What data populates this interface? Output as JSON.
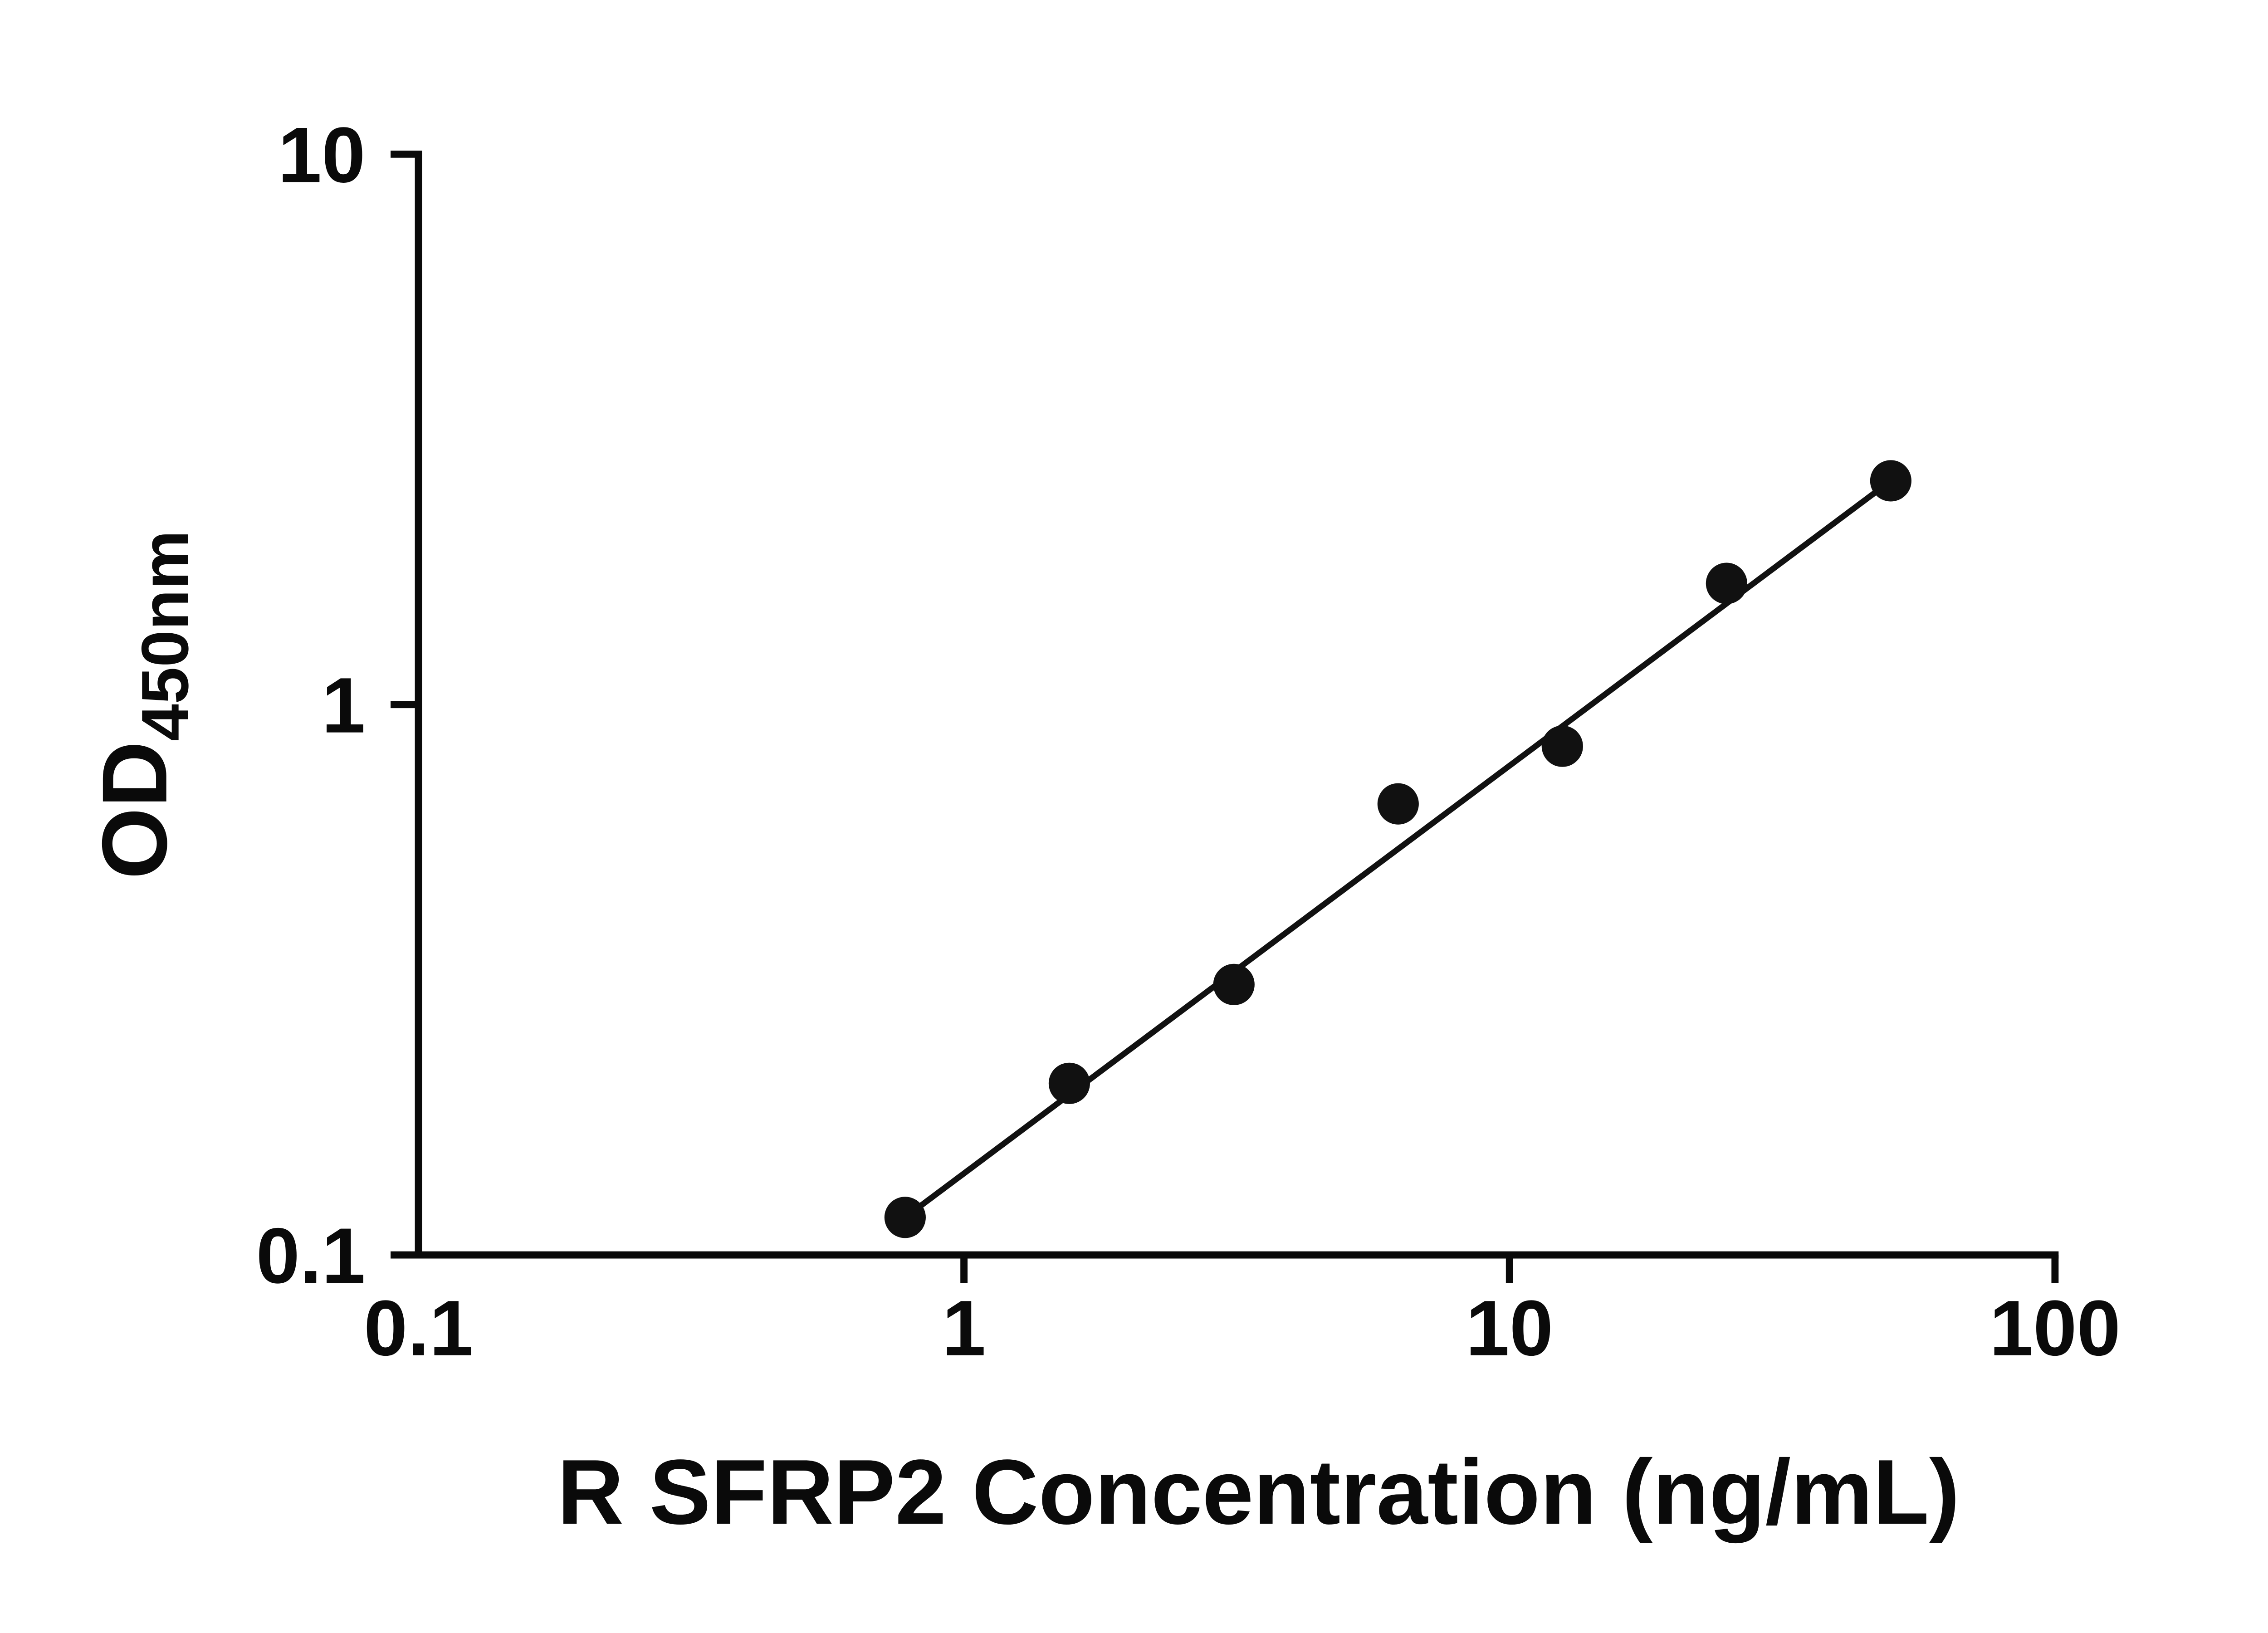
{
  "chart_data": {
    "type": "scatter",
    "title": "",
    "xlabel": "R SFRP2 Concentration (ng/mL)",
    "ylabel": "OD",
    "ylabel_sub": "450nm",
    "x_scale": "log",
    "y_scale": "log",
    "xlim": [
      0.1,
      100
    ],
    "ylim": [
      0.1,
      10
    ],
    "x_ticks": [
      0.1,
      1,
      10,
      100
    ],
    "x_tick_labels": [
      "0.1",
      "1",
      "10",
      "100"
    ],
    "y_ticks": [
      10,
      1,
      0.1
    ],
    "y_tick_labels": [
      "10",
      "1",
      "0.1"
    ],
    "grid": false,
    "legend": "none",
    "axis_color": "#0a0a0a",
    "marker_color": "#111111",
    "line_color": "#111111",
    "points": [
      {
        "x": 0.78,
        "y": 0.117
      },
      {
        "x": 1.56,
        "y": 0.205
      },
      {
        "x": 3.125,
        "y": 0.31
      },
      {
        "x": 6.25,
        "y": 0.66
      },
      {
        "x": 12.5,
        "y": 0.84
      },
      {
        "x": 25,
        "y": 1.66
      },
      {
        "x": 50,
        "y": 2.55
      }
    ],
    "trend_line": {
      "from_index": 0,
      "to_index": 6
    }
  }
}
